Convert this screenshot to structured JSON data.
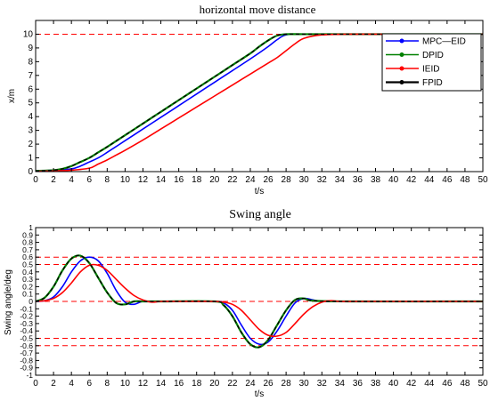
{
  "chart_data": [
    {
      "type": "line",
      "title": "horizontal move distance",
      "xlabel": "t/s",
      "ylabel": "x/m",
      "xlim": [
        0,
        50
      ],
      "ylim": [
        0,
        11
      ],
      "xticks": [
        0,
        2,
        4,
        6,
        8,
        10,
        12,
        14,
        16,
        18,
        20,
        22,
        24,
        26,
        28,
        30,
        32,
        34,
        36,
        38,
        40,
        42,
        44,
        46,
        48,
        50
      ],
      "yticks": [
        0,
        1,
        2,
        3,
        4,
        5,
        6,
        7,
        8,
        9,
        10
      ],
      "xtick_labels": [
        "0",
        "2",
        "4",
        "6",
        "8",
        "10",
        "12",
        "14",
        "16",
        "18",
        "20",
        "22",
        "24",
        "26",
        "28",
        "30",
        "32",
        "34",
        "36",
        "38",
        "40",
        "42",
        "44",
        "46",
        "48",
        "50"
      ],
      "ytick_labels": [
        "0",
        "1",
        "2",
        "3",
        "4",
        "5",
        "6",
        "7",
        "8",
        "9",
        "10"
      ],
      "reference_lines": [
        10
      ],
      "legend_position": "top-right",
      "grid": false,
      "series": [
        {
          "name": "MPC—EID",
          "color": "#0000ff",
          "x": [
            0,
            2,
            4,
            5,
            6,
            7,
            8,
            10,
            12,
            14,
            16,
            18,
            20,
            22,
            24,
            26,
            27,
            28,
            30,
            35,
            40,
            45,
            50
          ],
          "y": [
            0.05,
            0.1,
            0.2,
            0.4,
            0.7,
            1.0,
            1.4,
            2.25,
            3.1,
            3.95,
            4.8,
            5.65,
            6.5,
            7.35,
            8.2,
            9.1,
            9.6,
            9.95,
            10.0,
            10.0,
            10.0,
            10.0,
            10.0
          ]
        },
        {
          "name": "DPID",
          "color": "#008000",
          "x": [
            0,
            2,
            3,
            4,
            5,
            6,
            7,
            8,
            10,
            12,
            14,
            16,
            18,
            20,
            22,
            24,
            25,
            26,
            27,
            28,
            30,
            35,
            40,
            45,
            50
          ],
          "y": [
            0.05,
            0.1,
            0.2,
            0.4,
            0.7,
            1.0,
            1.4,
            1.8,
            2.65,
            3.5,
            4.35,
            5.2,
            6.05,
            6.9,
            7.75,
            8.6,
            9.1,
            9.55,
            9.9,
            10.0,
            10.0,
            10.0,
            10.0,
            10.0,
            10.0
          ]
        },
        {
          "name": "IEID",
          "color": "#ff0000",
          "x": [
            0,
            2,
            4,
            6,
            7,
            8,
            9,
            10,
            12,
            14,
            16,
            18,
            20,
            22,
            24,
            26,
            27,
            28,
            29,
            30,
            32,
            35,
            40,
            45,
            50
          ],
          "y": [
            0.02,
            0.05,
            0.1,
            0.25,
            0.55,
            0.85,
            1.2,
            1.55,
            2.3,
            3.1,
            3.9,
            4.7,
            5.5,
            6.3,
            7.1,
            7.9,
            8.3,
            8.8,
            9.3,
            9.7,
            9.95,
            10.0,
            10.0,
            10.0,
            10.0
          ]
        },
        {
          "name": "FPID",
          "color": "#000000",
          "x": [
            0,
            2,
            3,
            4,
            5,
            6,
            7,
            8,
            10,
            12,
            14,
            16,
            18,
            20,
            22,
            24,
            25,
            26,
            27,
            28,
            30,
            35,
            40,
            45,
            50
          ],
          "y": [
            0.05,
            0.1,
            0.2,
            0.4,
            0.7,
            1.0,
            1.4,
            1.8,
            2.65,
            3.5,
            4.35,
            5.2,
            6.05,
            6.9,
            7.75,
            8.6,
            9.1,
            9.55,
            9.9,
            10.0,
            10.0,
            10.0,
            10.0,
            10.0,
            10.0
          ]
        }
      ]
    },
    {
      "type": "line",
      "title": "Swing angle",
      "xlabel": "t/s",
      "ylabel": "Swing angle/deg",
      "xlim": [
        0,
        50
      ],
      "ylim": [
        -1,
        1
      ],
      "xticks": [
        0,
        2,
        4,
        6,
        8,
        10,
        12,
        14,
        16,
        18,
        20,
        22,
        24,
        26,
        28,
        30,
        32,
        34,
        36,
        38,
        40,
        42,
        44,
        46,
        48,
        50
      ],
      "yticks": [
        -1,
        -0.9,
        -0.8,
        -0.7,
        -0.6,
        -0.5,
        -0.4,
        -0.3,
        -0.2,
        -0.1,
        0,
        0.1,
        0.2,
        0.3,
        0.4,
        0.5,
        0.6,
        0.7,
        0.8,
        0.9,
        1
      ],
      "xtick_labels": [
        "0",
        "2",
        "4",
        "6",
        "8",
        "10",
        "12",
        "14",
        "16",
        "18",
        "20",
        "22",
        "24",
        "26",
        "28",
        "30",
        "32",
        "34",
        "36",
        "38",
        "40",
        "42",
        "44",
        "46",
        "48",
        "50"
      ],
      "ytick_labels": [
        "-1",
        "-0.9",
        "-0.8",
        "-0.7",
        "-0.6",
        "-0.5",
        "-0.4",
        "-0.3",
        "-0.2",
        "-0.1",
        "0",
        "0.1",
        "0.2",
        "0.3",
        "0.4",
        "0.5",
        "0.6",
        "0.7",
        "0.8",
        "0.9",
        "1"
      ],
      "reference_lines": [
        0.6,
        0.5,
        0,
        -0.5,
        -0.6
      ],
      "grid": false,
      "series": [
        {
          "name": "MPC—EID",
          "color": "#0000ff",
          "x": [
            0,
            1,
            2,
            3,
            4,
            5,
            6,
            7,
            8,
            9,
            10,
            11,
            12,
            14,
            20,
            21,
            22,
            23,
            24,
            25,
            26,
            27,
            28,
            29,
            30,
            31,
            32,
            35,
            50
          ],
          "y": [
            0,
            0.01,
            0.06,
            0.2,
            0.4,
            0.55,
            0.6,
            0.55,
            0.38,
            0.15,
            -0.01,
            -0.04,
            0,
            0,
            0,
            -0.02,
            -0.12,
            -0.32,
            -0.5,
            -0.58,
            -0.55,
            -0.4,
            -0.2,
            -0.02,
            0.04,
            0.02,
            0,
            0,
            0
          ]
        },
        {
          "name": "DPID",
          "color": "#008000",
          "x": [
            0,
            1,
            2,
            3,
            4,
            5,
            6,
            7,
            8,
            9,
            10,
            11,
            12,
            14,
            20,
            21,
            22,
            23,
            24,
            25,
            26,
            27,
            28,
            29,
            30,
            31,
            35,
            50
          ],
          "y": [
            0,
            0.05,
            0.2,
            0.42,
            0.58,
            0.62,
            0.52,
            0.32,
            0.12,
            -0.02,
            -0.04,
            0,
            0,
            0,
            0,
            -0.05,
            -0.2,
            -0.42,
            -0.58,
            -0.62,
            -0.52,
            -0.32,
            -0.12,
            0.02,
            0.04,
            0.01,
            0,
            0
          ]
        },
        {
          "name": "IEID",
          "color": "#ff0000",
          "x": [
            0,
            1,
            2,
            3,
            4,
            5,
            6,
            7,
            8,
            9,
            10,
            11,
            12,
            13,
            14,
            16,
            20,
            21,
            22,
            23,
            24,
            25,
            26,
            27,
            28,
            29,
            30,
            31,
            32,
            33,
            34,
            36,
            50
          ],
          "y": [
            0,
            0.01,
            0.04,
            0.12,
            0.25,
            0.4,
            0.49,
            0.49,
            0.42,
            0.3,
            0.18,
            0.08,
            0.02,
            -0.01,
            0,
            0,
            0,
            -0.01,
            -0.04,
            -0.12,
            -0.25,
            -0.38,
            -0.46,
            -0.47,
            -0.42,
            -0.3,
            -0.17,
            -0.07,
            -0.01,
            0.01,
            0,
            0,
            0
          ]
        },
        {
          "name": "FPID",
          "color": "#000000",
          "x": [
            0,
            1,
            2,
            3,
            4,
            5,
            6,
            7,
            8,
            9,
            10,
            11,
            12,
            14,
            20,
            21,
            22,
            23,
            24,
            25,
            26,
            27,
            28,
            29,
            30,
            31,
            35,
            50
          ],
          "y": [
            0,
            0.05,
            0.2,
            0.42,
            0.58,
            0.62,
            0.52,
            0.32,
            0.12,
            -0.02,
            -0.04,
            0,
            0,
            0,
            0,
            -0.05,
            -0.2,
            -0.42,
            -0.58,
            -0.62,
            -0.52,
            -0.32,
            -0.12,
            0.02,
            0.04,
            0.01,
            0,
            0
          ]
        }
      ]
    }
  ]
}
